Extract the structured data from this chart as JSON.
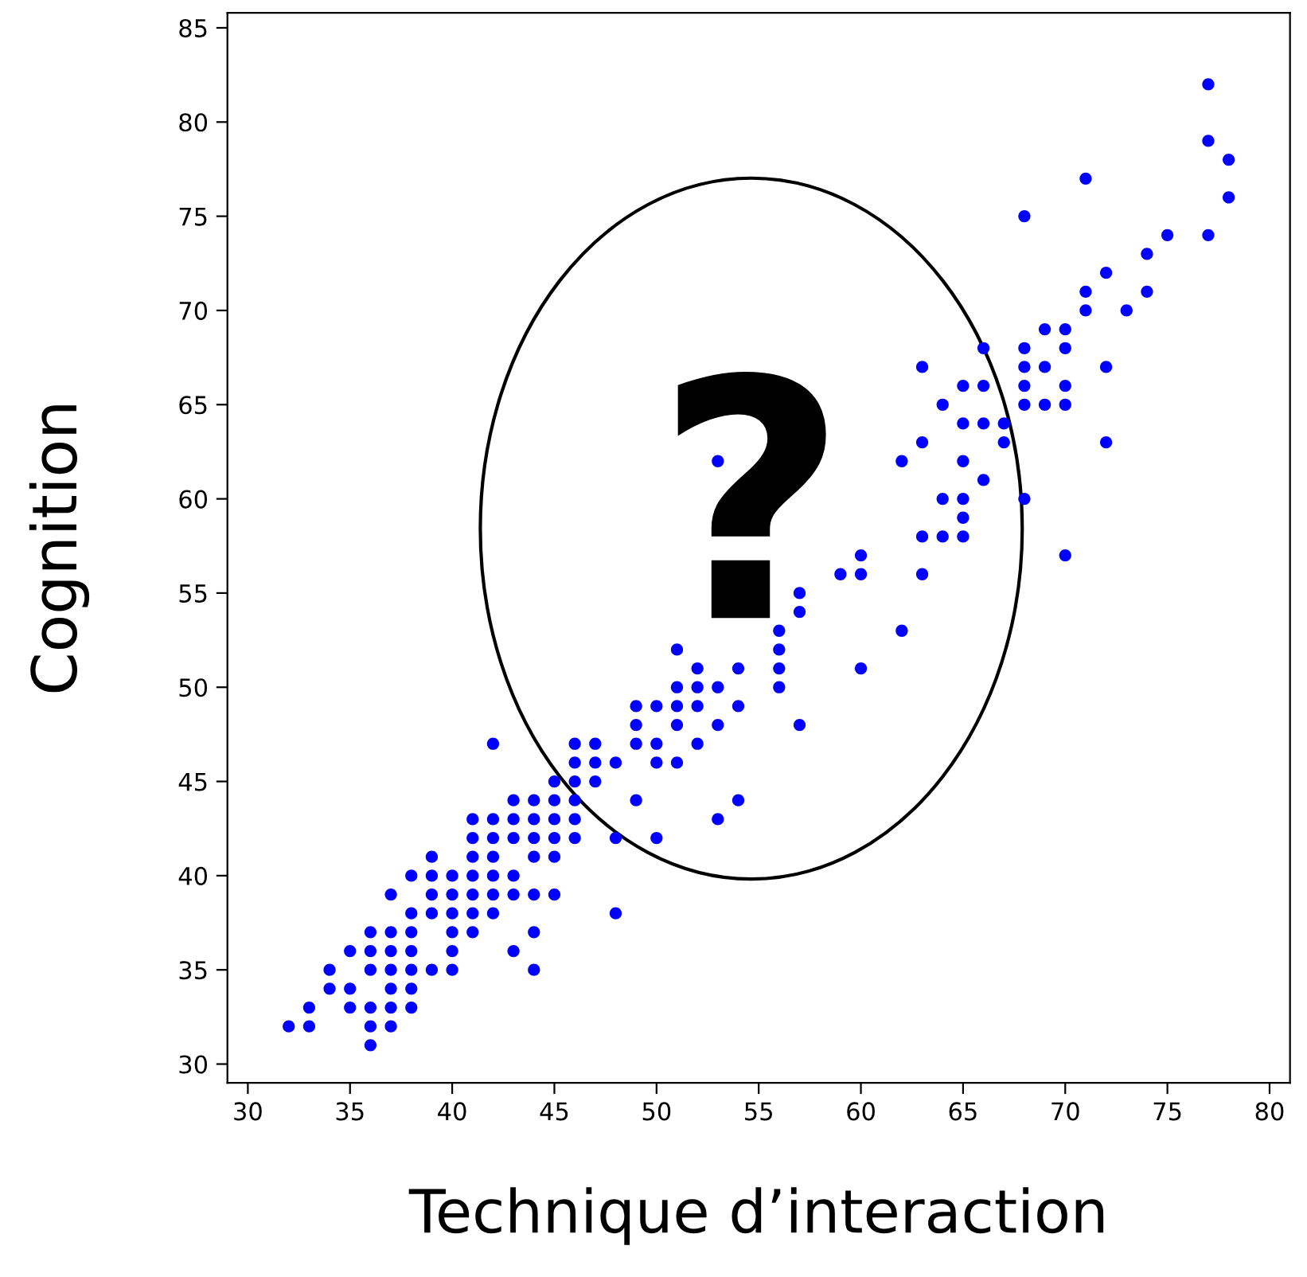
{
  "chart_data": {
    "type": "scatter",
    "xlabel": "Technique d’interaction",
    "ylabel": "Cognition",
    "annotations": [
      "?"
    ],
    "series": [
      {
        "color": "#0000ff",
        "x": [
          32,
          33,
          33,
          34,
          34,
          35,
          35,
          35,
          36,
          36,
          36,
          36,
          36,
          36,
          37,
          37,
          37,
          37,
          37,
          37,
          37,
          38,
          38,
          38,
          38,
          38,
          38,
          38,
          39,
          39,
          39,
          39,
          39,
          40,
          40,
          40,
          40,
          40,
          40,
          41,
          41,
          41,
          41,
          41,
          41,
          41,
          42,
          42,
          42,
          42,
          42,
          42,
          42,
          43,
          43,
          43,
          43,
          43,
          43,
          44,
          44,
          44,
          44,
          44,
          44,
          44,
          45,
          45,
          45,
          45,
          45,
          45,
          46,
          46,
          46,
          46,
          46,
          46,
          47,
          47,
          47,
          48,
          48,
          48,
          49,
          49,
          49,
          49,
          50,
          50,
          50,
          50,
          51,
          51,
          51,
          51,
          51,
          52,
          52,
          52,
          52,
          53,
          53,
          53,
          53,
          54,
          54,
          54,
          56,
          56,
          56,
          56,
          57,
          57,
          57,
          59,
          60,
          60,
          60,
          62,
          62,
          63,
          63,
          63,
          63,
          64,
          64,
          64,
          65,
          65,
          65,
          65,
          65,
          65,
          66,
          66,
          66,
          66,
          67,
          67,
          68,
          68,
          68,
          68,
          68,
          68,
          69,
          69,
          69,
          70,
          70,
          70,
          70,
          70,
          71,
          71,
          71,
          72,
          72,
          72,
          73,
          74,
          74,
          75,
          77,
          77,
          77,
          78,
          78
        ],
        "values": [
          32,
          32,
          33,
          34,
          35,
          34,
          33,
          36,
          37,
          36,
          35,
          33,
          32,
          31,
          39,
          37,
          36,
          35,
          34,
          33,
          32,
          40,
          38,
          37,
          36,
          35,
          34,
          33,
          41,
          40,
          39,
          38,
          35,
          40,
          39,
          38,
          37,
          36,
          35,
          43,
          42,
          41,
          40,
          39,
          38,
          37,
          47,
          43,
          42,
          41,
          40,
          39,
          38,
          44,
          43,
          42,
          40,
          39,
          36,
          44,
          43,
          42,
          41,
          39,
          37,
          35,
          45,
          44,
          43,
          42,
          41,
          39,
          47,
          46,
          45,
          44,
          43,
          42,
          47,
          46,
          45,
          46,
          42,
          38,
          49,
          48,
          47,
          44,
          49,
          47,
          46,
          42,
          52,
          50,
          49,
          48,
          46,
          51,
          50,
          49,
          47,
          62,
          50,
          48,
          43,
          51,
          49,
          44,
          53,
          52,
          51,
          50,
          55,
          54,
          48,
          56,
          57,
          56,
          51,
          62,
          53,
          67,
          63,
          58,
          56,
          65,
          60,
          58,
          66,
          64,
          62,
          60,
          59,
          58,
          68,
          66,
          64,
          61,
          64,
          63,
          75,
          68,
          67,
          66,
          65,
          60,
          69,
          67,
          65,
          69,
          68,
          66,
          65,
          57,
          77,
          71,
          70,
          72,
          67,
          63,
          70,
          73,
          71,
          74,
          82,
          79,
          74,
          78,
          76
        ]
      }
    ],
    "xlim": [
      29,
      81
    ],
    "ylim": [
      29,
      85.8
    ],
    "xticks": [
      30,
      35,
      40,
      45,
      50,
      55,
      60,
      65,
      70,
      75,
      80
    ],
    "yticks": [
      30,
      35,
      40,
      45,
      50,
      55,
      60,
      65,
      70,
      75,
      80,
      85
    ],
    "marker": "circle",
    "grid": false,
    "legend": false
  }
}
